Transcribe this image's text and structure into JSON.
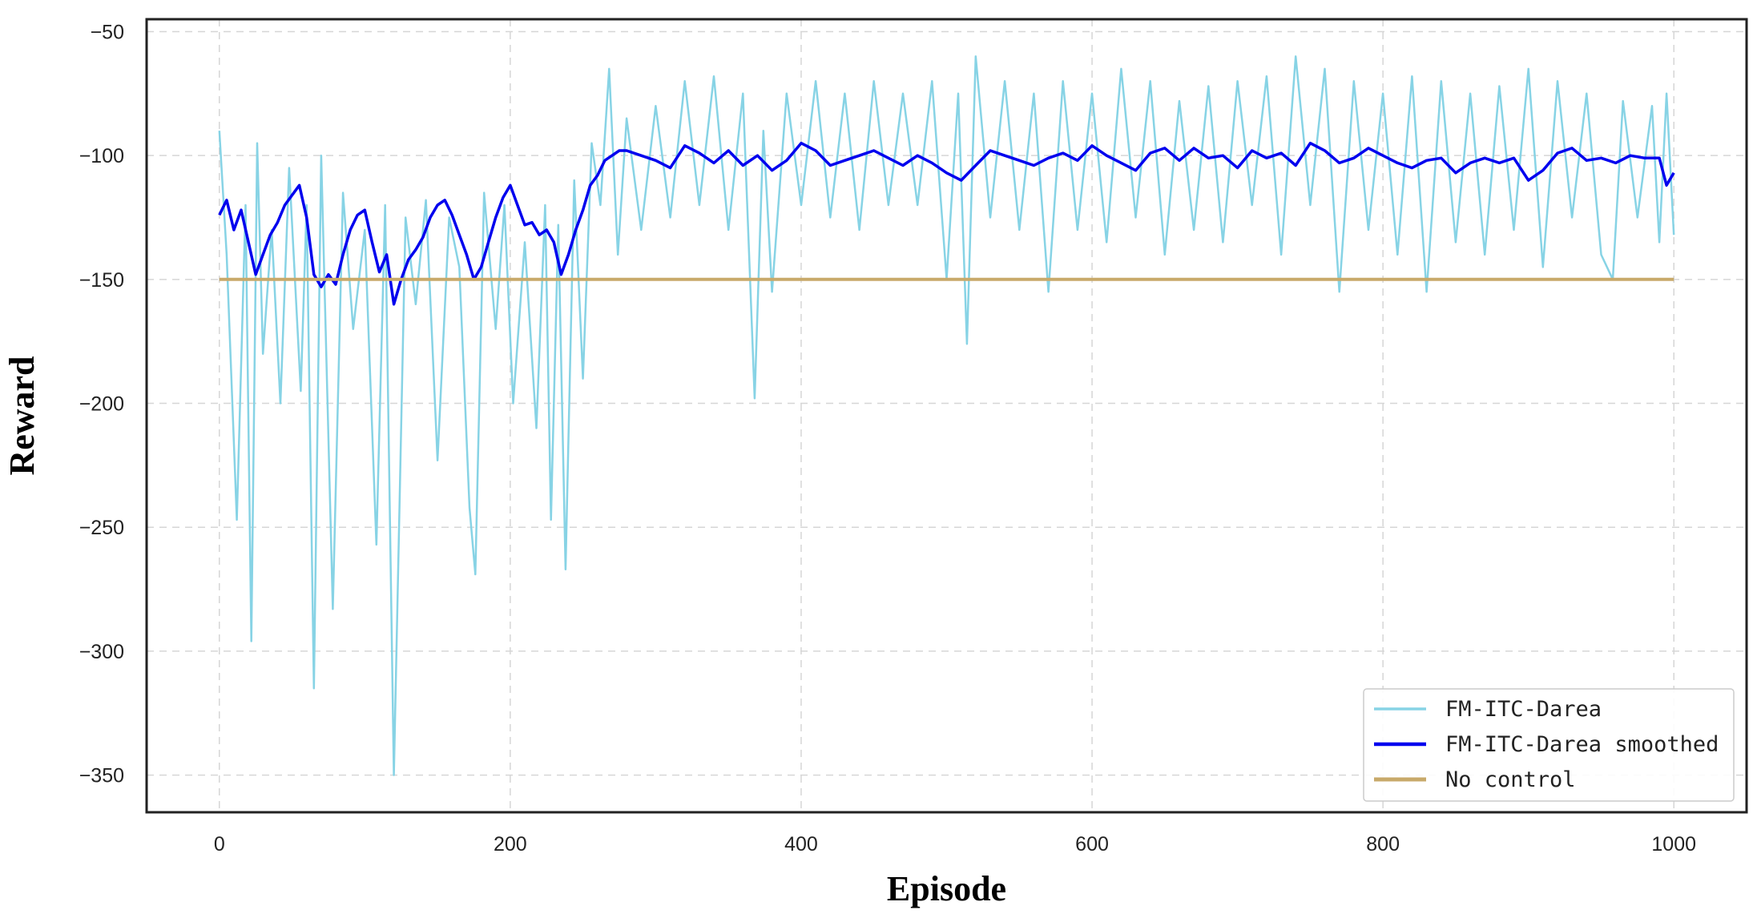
{
  "chart_data": {
    "type": "line",
    "xlabel": "Episode",
    "ylabel": "Reward",
    "xlim": [
      -50,
      1050
    ],
    "ylim": [
      -365,
      -45
    ],
    "xticks": [
      0,
      200,
      400,
      600,
      800,
      1000
    ],
    "yticks": [
      -50,
      -100,
      -150,
      -200,
      -250,
      -300,
      -350
    ],
    "grid": true,
    "legend_position": "bottom-right",
    "series": [
      {
        "name": "FM-ITC-Darea",
        "color": "#87d3e5",
        "x": [
          0,
          5,
          12,
          18,
          22,
          26,
          30,
          36,
          42,
          48,
          56,
          60,
          65,
          70,
          78,
          85,
          92,
          100,
          108,
          114,
          120,
          128,
          135,
          142,
          150,
          158,
          165,
          172,
          176,
          182,
          190,
          196,
          202,
          210,
          218,
          224,
          228,
          233,
          238,
          244,
          250,
          256,
          262,
          268,
          274,
          280,
          290,
          300,
          310,
          320,
          330,
          340,
          350,
          360,
          368,
          374,
          380,
          390,
          400,
          410,
          420,
          430,
          440,
          450,
          460,
          470,
          480,
          490,
          500,
          508,
          514,
          520,
          530,
          540,
          550,
          560,
          570,
          580,
          590,
          600,
          610,
          620,
          630,
          640,
          650,
          660,
          670,
          680,
          690,
          700,
          710,
          720,
          730,
          740,
          750,
          760,
          770,
          780,
          790,
          800,
          810,
          820,
          830,
          840,
          850,
          860,
          870,
          880,
          890,
          900,
          910,
          920,
          930,
          940,
          950,
          958,
          965,
          975,
          985,
          990,
          995,
          1000
        ],
        "values": [
          -90,
          -140,
          -247,
          -120,
          -296,
          -95,
          -180,
          -130,
          -200,
          -105,
          -195,
          -120,
          -315,
          -100,
          -283,
          -115,
          -170,
          -130,
          -257,
          -120,
          -350,
          -125,
          -160,
          -118,
          -223,
          -125,
          -145,
          -242,
          -269,
          -115,
          -170,
          -120,
          -200,
          -135,
          -210,
          -120,
          -247,
          -128,
          -267,
          -110,
          -190,
          -95,
          -120,
          -65,
          -140,
          -85,
          -130,
          -80,
          -125,
          -70,
          -120,
          -68,
          -130,
          -75,
          -198,
          -90,
          -155,
          -75,
          -120,
          -70,
          -125,
          -75,
          -130,
          -70,
          -120,
          -75,
          -120,
          -70,
          -150,
          -75,
          -176,
          -60,
          -125,
          -70,
          -130,
          -75,
          -155,
          -70,
          -130,
          -75,
          -135,
          -65,
          -125,
          -70,
          -140,
          -78,
          -130,
          -72,
          -135,
          -70,
          -120,
          -68,
          -140,
          -60,
          -120,
          -65,
          -155,
          -70,
          -130,
          -75,
          -140,
          -68,
          -155,
          -70,
          -135,
          -75,
          -140,
          -72,
          -130,
          -65,
          -145,
          -70,
          -125,
          -75,
          -140,
          -150,
          -78,
          -125,
          -80,
          -135,
          -75,
          -132
        ]
      },
      {
        "name": "FM-ITC-Darea smoothed",
        "color": "#0000ee",
        "x": [
          0,
          5,
          10,
          15,
          20,
          25,
          30,
          35,
          40,
          45,
          50,
          55,
          60,
          65,
          70,
          75,
          80,
          85,
          90,
          95,
          100,
          105,
          110,
          115,
          120,
          125,
          130,
          135,
          140,
          145,
          150,
          155,
          160,
          165,
          170,
          175,
          180,
          185,
          190,
          195,
          200,
          205,
          210,
          215,
          220,
          225,
          230,
          235,
          240,
          245,
          250,
          255,
          260,
          265,
          270,
          275,
          280,
          290,
          300,
          310,
          320,
          330,
          340,
          350,
          360,
          370,
          380,
          390,
          400,
          410,
          420,
          430,
          440,
          450,
          460,
          470,
          480,
          490,
          500,
          510,
          520,
          530,
          540,
          550,
          560,
          570,
          580,
          590,
          600,
          610,
          620,
          630,
          640,
          650,
          660,
          670,
          680,
          690,
          700,
          710,
          720,
          730,
          740,
          750,
          760,
          770,
          780,
          790,
          800,
          810,
          820,
          830,
          840,
          850,
          860,
          870,
          880,
          890,
          900,
          910,
          920,
          930,
          940,
          950,
          960,
          970,
          980,
          990,
          995,
          1000
        ],
        "values": [
          -124,
          -118,
          -130,
          -122,
          -135,
          -148,
          -140,
          -132,
          -127,
          -120,
          -116,
          -112,
          -125,
          -148,
          -153,
          -148,
          -152,
          -140,
          -130,
          -124,
          -122,
          -135,
          -147,
          -140,
          -160,
          -150,
          -142,
          -138,
          -133,
          -125,
          -120,
          -118,
          -124,
          -132,
          -140,
          -150,
          -145,
          -135,
          -125,
          -117,
          -112,
          -120,
          -128,
          -127,
          -132,
          -130,
          -135,
          -148,
          -140,
          -130,
          -122,
          -112,
          -108,
          -102,
          -100,
          -98,
          -98,
          -100,
          -102,
          -105,
          -96,
          -99,
          -103,
          -98,
          -104,
          -100,
          -106,
          -102,
          -95,
          -98,
          -104,
          -102,
          -100,
          -98,
          -101,
          -104,
          -100,
          -103,
          -107,
          -110,
          -104,
          -98,
          -100,
          -102,
          -104,
          -101,
          -99,
          -102,
          -96,
          -100,
          -103,
          -106,
          -99,
          -97,
          -102,
          -97,
          -101,
          -100,
          -105,
          -98,
          -101,
          -99,
          -104,
          -95,
          -98,
          -103,
          -101,
          -97,
          -100,
          -103,
          -105,
          -102,
          -101,
          -107,
          -103,
          -101,
          -103,
          -101,
          -110,
          -106,
          -99,
          -97,
          -102,
          -101,
          -103,
          -100,
          -101,
          -101,
          -112,
          -107
        ]
      },
      {
        "name": "No control",
        "color": "#c8a96a",
        "x": [
          0,
          1000
        ],
        "values": [
          -150,
          -150
        ]
      }
    ]
  }
}
